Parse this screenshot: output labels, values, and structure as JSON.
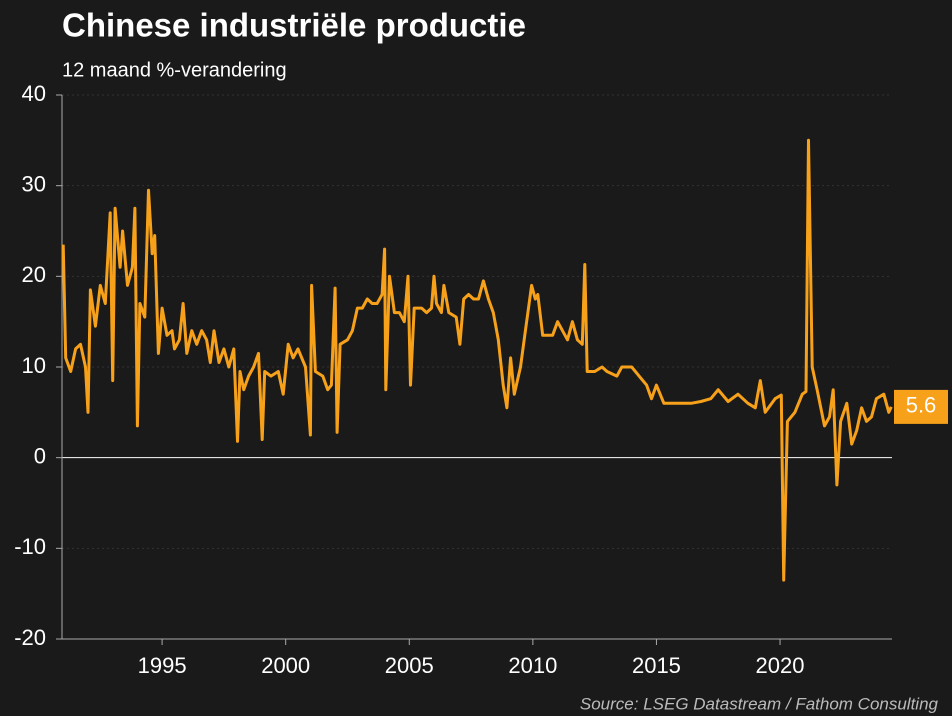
{
  "chart_data": {
    "type": "line",
    "title": "Chinese industriële productie",
    "subtitle": "12 maand %-verandering",
    "source": "Source: LSEG Datastream / Fathom Consulting",
    "xlim": [
      1990.95,
      2024.53
    ],
    "xticks": [
      1995,
      2000,
      2005,
      2010,
      2015,
      2020
    ],
    "ylim": [
      -20,
      40
    ],
    "yticks": [
      -20,
      -10,
      0,
      10,
      20,
      30,
      40
    ],
    "grid": true,
    "x": [
      1991.0,
      1991.1,
      1991.3,
      1991.5,
      1991.7,
      1991.9,
      1992.0,
      1992.1,
      1992.3,
      1992.5,
      1992.7,
      1992.9,
      1993.0,
      1993.1,
      1993.3,
      1993.4,
      1993.6,
      1993.8,
      1993.9,
      1994.0,
      1994.1,
      1994.3,
      1994.45,
      1994.6,
      1994.7,
      1994.85,
      1995.0,
      1995.2,
      1995.4,
      1995.5,
      1995.7,
      1995.85,
      1996.0,
      1996.2,
      1996.4,
      1996.6,
      1996.8,
      1996.95,
      1997.1,
      1997.3,
      1997.5,
      1997.7,
      1997.9,
      1998.05,
      1998.15,
      1998.3,
      1998.5,
      1998.7,
      1998.9,
      1999.05,
      1999.15,
      1999.4,
      1999.7,
      1999.9,
      2000.1,
      2000.3,
      2000.5,
      2000.8,
      2001.0,
      2001.05,
      2001.2,
      2001.5,
      2001.7,
      2001.85,
      2002.0,
      2002.08,
      2002.2,
      2002.5,
      2002.7,
      2002.9,
      2003.1,
      2003.3,
      2003.5,
      2003.7,
      2003.9,
      2004.0,
      2004.05,
      2004.2,
      2004.4,
      2004.6,
      2004.8,
      2004.95,
      2005.05,
      2005.2,
      2005.5,
      2005.7,
      2005.9,
      2006.0,
      2006.1,
      2006.3,
      2006.4,
      2006.6,
      2006.9,
      2007.05,
      2007.2,
      2007.4,
      2007.6,
      2007.8,
      2008.0,
      2008.2,
      2008.4,
      2008.6,
      2008.8,
      2008.95,
      2009.1,
      2009.25,
      2009.5,
      2009.7,
      2009.95,
      2010.1,
      2010.2,
      2010.4,
      2010.6,
      2010.8,
      2011.0,
      2011.2,
      2011.4,
      2011.6,
      2011.8,
      2012.0,
      2012.1,
      2012.2,
      2012.5,
      2012.8,
      2013.0,
      2013.4,
      2013.6,
      2014.0,
      2014.3,
      2014.6,
      2014.8,
      2015.0,
      2015.3,
      2015.6,
      2016.0,
      2016.4,
      2016.8,
      2017.2,
      2017.5,
      2017.9,
      2018.3,
      2018.7,
      2019.0,
      2019.2,
      2019.4,
      2019.8,
      2020.05,
      2020.15,
      2020.3,
      2020.6,
      2020.9,
      2021.05,
      2021.15,
      2021.3,
      2021.5,
      2021.8,
      2022.0,
      2022.15,
      2022.3,
      2022.45,
      2022.7,
      2022.9,
      2023.1,
      2023.3,
      2023.5,
      2023.7,
      2023.9,
      2024.2,
      2024.4,
      2024.5
    ],
    "series": [
      {
        "name": "Chinese industriële productie",
        "color": "#f7a11a",
        "values": [
          23.5,
          11,
          9.5,
          12,
          12.5,
          10,
          5,
          18.5,
          14.5,
          19,
          17,
          27,
          8.5,
          27.5,
          21,
          25,
          19,
          21,
          27.5,
          3.5,
          17,
          15.5,
          29.5,
          22.5,
          24.5,
          11.5,
          16.5,
          13.5,
          14,
          12,
          13,
          17,
          11.5,
          14,
          12.5,
          14,
          13,
          10.5,
          14,
          10.5,
          12,
          10,
          12,
          1.8,
          9.5,
          7.5,
          9,
          10,
          11.5,
          2,
          9.5,
          9,
          9.5,
          7,
          12.5,
          11,
          12,
          10,
          2.5,
          19,
          9.5,
          9,
          7.5,
          8,
          18.7,
          2.8,
          12.5,
          13,
          14,
          16.5,
          16.5,
          17.5,
          17,
          17,
          18,
          23,
          7.5,
          20,
          16,
          16,
          15,
          20,
          8,
          16.5,
          16.5,
          16,
          16.5,
          20,
          17,
          16,
          19,
          16,
          15.5,
          12.5,
          17.5,
          18,
          17.5,
          17.5,
          19.5,
          17.5,
          16,
          13,
          8,
          5.5,
          11,
          7,
          10,
          14,
          19,
          17.5,
          18,
          13.5,
          13.5,
          13.5,
          15,
          14,
          13,
          15,
          13,
          12.5,
          21.3,
          9.5,
          9.5,
          10,
          9.5,
          9,
          10,
          10,
          9,
          8,
          6.5,
          8,
          6,
          6,
          6,
          6,
          6.2,
          6.5,
          7.5,
          6.2,
          7,
          6,
          5.5,
          8.5,
          5,
          6.5,
          6.9,
          -13.5,
          4,
          5,
          7,
          7.3,
          35,
          10,
          7.5,
          3.5,
          4.5,
          7.5,
          -3,
          4,
          6,
          1.5,
          3,
          5.5,
          4,
          4.5,
          6.5,
          7,
          5,
          5.6
        ]
      }
    ]
  }
}
